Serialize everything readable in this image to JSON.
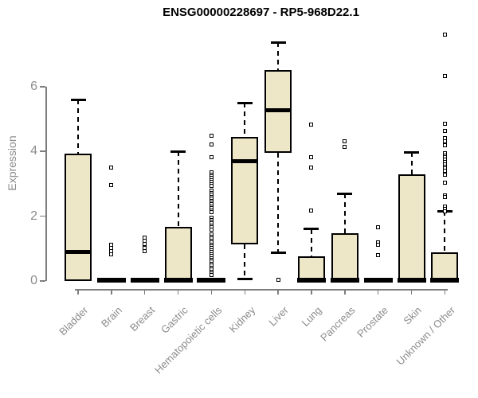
{
  "chart_data": {
    "type": "boxplot",
    "title": "ENSG00000228697 - RP5-968D22.1",
    "ylabel": "Expression",
    "xlabel": "",
    "yticks": [
      0,
      2,
      4,
      6
    ],
    "ylim": [
      0,
      7.7
    ],
    "grid": false,
    "legend": "none",
    "categories": [
      "Bladder",
      "Brain",
      "Breast",
      "Gastric",
      "Hematopoietic cells",
      "Kidney",
      "Liver",
      "Lung",
      "Pancreas",
      "Prostate",
      "Skin",
      "Unknown / Other"
    ],
    "boxes": [
      {
        "category": "Bladder",
        "whisker_low": 0,
        "q1": 0,
        "median": 0.9,
        "q3": 3.93,
        "whisker_high": 5.6,
        "outliers": []
      },
      {
        "category": "Brain",
        "whisker_low": 0,
        "q1": 0,
        "median": 0,
        "q3": 0,
        "whisker_high": 0,
        "outliers": [
          3.51,
          2.96,
          1.12,
          1.02,
          0.93,
          0.83
        ]
      },
      {
        "category": "Breast",
        "whisker_low": 0,
        "q1": 0,
        "median": 0,
        "q3": 0,
        "whisker_high": 0,
        "outliers": [
          1.35,
          1.24,
          1.14,
          1.03,
          0.93
        ]
      },
      {
        "category": "Gastric",
        "whisker_low": 0,
        "q1": 0,
        "median": 0.04,
        "q3": 1.68,
        "whisker_high": 4.0,
        "outliers": []
      },
      {
        "category": "Hematopoietic cells",
        "whisker_low": 0,
        "q1": 0,
        "median": 0,
        "q3": 0,
        "whisker_high": 0,
        "outliers": [
          4.49,
          4.21,
          3.81,
          3.35,
          3.29,
          3.23,
          3.17,
          3.11,
          3.05,
          2.99,
          2.93,
          2.78,
          2.72,
          2.66,
          2.6,
          2.54,
          2.48,
          2.42,
          2.36,
          2.3,
          2.24,
          2.18,
          2.12,
          1.95,
          1.89,
          1.83,
          1.77,
          1.71,
          1.65,
          1.59,
          1.43,
          1.37,
          1.31,
          1.25,
          1.19,
          1.13,
          1.07,
          1.01,
          0.95,
          0.89,
          0.83,
          0.77,
          0.71,
          0.65,
          0.59,
          0.53,
          0.47,
          0.41,
          0.35,
          0.29,
          0.24,
          0.18
        ]
      },
      {
        "category": "Kidney",
        "whisker_low": 0.05,
        "q1": 1.13,
        "median": 3.71,
        "q3": 4.45,
        "whisker_high": 5.5,
        "outliers": []
      },
      {
        "category": "Liver",
        "whisker_low": 0.88,
        "q1": 3.96,
        "median": 5.28,
        "q3": 6.5,
        "whisker_high": 7.37,
        "outliers": [
          0.03
        ]
      },
      {
        "category": "Lung",
        "whisker_low": 0,
        "q1": 0,
        "median": 0.04,
        "q3": 0.75,
        "whisker_high": 1.6,
        "outliers": [
          4.83,
          3.82,
          3.5,
          2.17
        ]
      },
      {
        "category": "Pancreas",
        "whisker_low": 0,
        "q1": 0,
        "median": 0.04,
        "q3": 1.47,
        "whisker_high": 2.7,
        "outliers": [
          4.31,
          4.13
        ]
      },
      {
        "category": "Prostate",
        "whisker_low": 0,
        "q1": 0,
        "median": 0,
        "q3": 0,
        "whisker_high": 0,
        "outliers": [
          1.65,
          1.2,
          1.11,
          0.81
        ]
      },
      {
        "category": "Skin",
        "whisker_low": 0,
        "q1": 0,
        "median": 0.04,
        "q3": 3.29,
        "whisker_high": 3.97,
        "outliers": []
      },
      {
        "category": "Unknown / Other",
        "whisker_low": 0,
        "q1": 0,
        "median": 0.04,
        "q3": 0.88,
        "whisker_high": 2.16,
        "outliers": [
          7.6,
          6.32,
          4.85,
          4.62,
          4.4,
          4.3,
          4.18,
          3.95,
          3.88,
          3.82,
          3.75,
          3.68,
          3.6,
          3.53,
          3.47,
          3.4,
          3.28,
          3.03,
          2.65,
          2.58,
          2.3,
          2.23,
          2.16
        ]
      }
    ],
    "colors": {
      "box_fill": "#ede6c7",
      "box_border": "#000000",
      "median": "#000000",
      "outlier_border": "#000000",
      "axis": "#7d7d7d",
      "tick_text": "#8c8c8c",
      "title_text": "#000000"
    }
  }
}
